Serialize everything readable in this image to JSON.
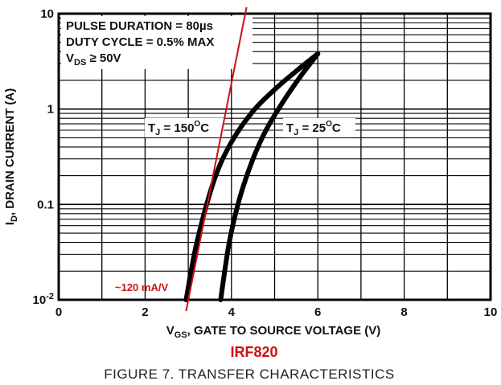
{
  "chart_data": {
    "type": "line",
    "title": "FIGURE 7. TRANSFER CHARACTERISTICS",
    "subtitle": "IRF820",
    "xlabel_prefix": "V",
    "xlabel_sub": "GS",
    "xlabel_rest": ", GATE TO SOURCE VOLTAGE (V)",
    "ylabel_prefix": "I",
    "ylabel_sub": "D",
    "ylabel_rest": ", DRAIN CURRENT (A)",
    "xlim": [
      0,
      10
    ],
    "ylim": [
      0.01,
      10
    ],
    "yscale": "log",
    "grid": true,
    "x_ticks": [
      {
        "v": 0,
        "label": "0"
      },
      {
        "v": 2,
        "label": "2"
      },
      {
        "v": 4,
        "label": "4"
      },
      {
        "v": 6,
        "label": "6"
      },
      {
        "v": 8,
        "label": "8"
      },
      {
        "v": 10,
        "label": "10"
      }
    ],
    "y_ticks": [
      {
        "v": 0.01,
        "base": "10",
        "exp": "-2"
      },
      {
        "v": 0.1,
        "label": "0.1"
      },
      {
        "v": 1,
        "label": "1"
      },
      {
        "v": 10,
        "label": "10"
      }
    ],
    "notes": [
      {
        "text": "PULSE DURATION = 80µs"
      },
      {
        "text": "DUTY CYCLE = 0.5% MAX"
      },
      {
        "prefix": "V",
        "sub": "DS",
        "text": " ≥ 50V"
      }
    ],
    "series": [
      {
        "label_prefix": "T",
        "label_sub": "J",
        "label_value": " = 150",
        "label_sup": "O",
        "label_unit": "C",
        "color": "#000000",
        "points": [
          [
            2.95,
            0.01
          ],
          [
            3.2,
            0.04
          ],
          [
            3.6,
            0.18
          ],
          [
            4.0,
            0.45
          ],
          [
            4.5,
            0.95
          ],
          [
            5.0,
            1.6
          ],
          [
            5.5,
            2.5
          ],
          [
            6.0,
            3.8
          ]
        ]
      },
      {
        "label_prefix": "T",
        "label_sub": "J",
        "label_value": " = 25",
        "label_sup": "O",
        "label_unit": "C",
        "color": "#000000",
        "points": [
          [
            3.75,
            0.01
          ],
          [
            3.95,
            0.04
          ],
          [
            4.2,
            0.12
          ],
          [
            4.5,
            0.3
          ],
          [
            4.8,
            0.6
          ],
          [
            5.2,
            1.2
          ],
          [
            5.6,
            2.2
          ],
          [
            6.0,
            3.8
          ]
        ]
      }
    ],
    "slope_line": {
      "color": "#cc1111",
      "from": [
        2.95,
        0.01
      ],
      "to": [
        4.35,
        10
      ],
      "label": "~120 mA/V"
    }
  }
}
